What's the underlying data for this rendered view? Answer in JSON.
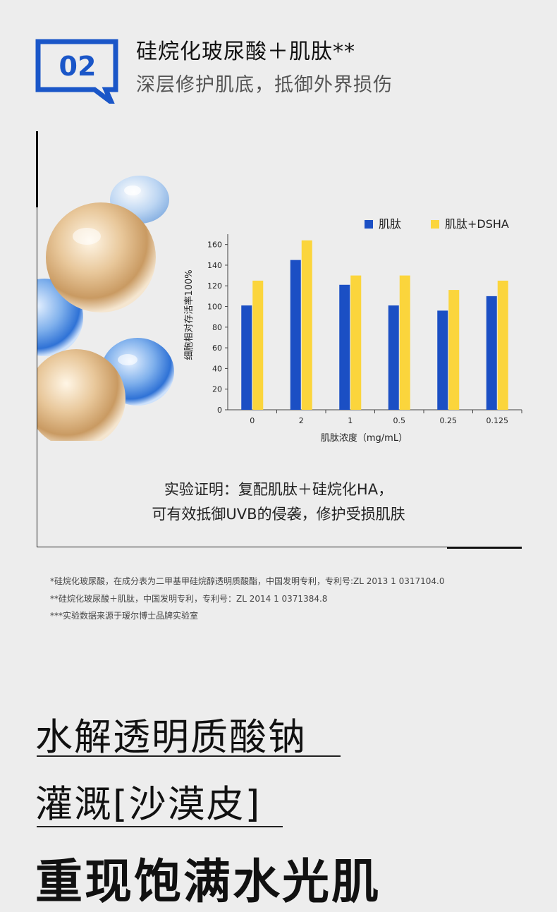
{
  "section": {
    "number": "02",
    "title": "硅烷化玻尿酸＋肌肽**",
    "subtitle": "深层修护肌底，抵御外界损伤",
    "accent_color": "#1a56c8"
  },
  "chart_data": {
    "type": "bar",
    "categories": [
      "0",
      "2",
      "1",
      "0.5",
      "0.25",
      "0.125"
    ],
    "series": [
      {
        "name": "肌肽",
        "color": "#1b4fc4",
        "values": [
          101,
          145,
          121,
          101,
          96,
          110
        ]
      },
      {
        "name": "肌肽+DSHA",
        "color": "#fbd53c",
        "values": [
          125,
          164,
          130,
          130,
          116,
          125
        ]
      }
    ],
    "xlabel": "肌肽浓度（mg/mL）",
    "ylabel": "细胞相对存活率100%",
    "ylim": [
      0,
      170
    ],
    "yticks": [
      "0",
      "20",
      "40",
      "60",
      "80",
      "100",
      "120",
      "140",
      "160"
    ],
    "legend_position": "top-right",
    "grid": false
  },
  "conclusion": {
    "line1": "实验证明：复配肌肽＋硅烷化HA，",
    "line2": "可有效抵御UVB的侵袭，修护受损肌肤"
  },
  "footnotes": [
    "*硅烷化玻尿酸，在成分表为二甲基甲硅烷醇透明质酸酯，中国发明专利，专利号:ZL  2013 1 0317104.0",
    "**硅烷化玻尿酸＋肌肽，中国发明专利，专利号：ZL  2014  1  0371384.8",
    "***实验数据来源于瑷尔博士品牌实验室"
  ],
  "headlines": {
    "line1": "水解透明质酸钠",
    "line2": "灌溉[沙漠皮]",
    "line3": "重现饱满水光肌"
  }
}
